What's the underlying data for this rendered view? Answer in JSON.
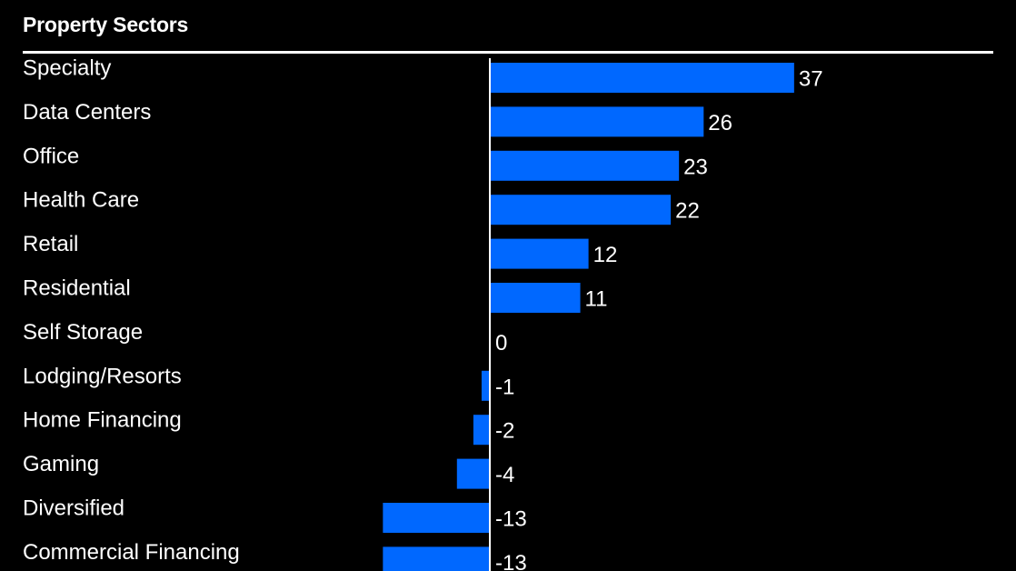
{
  "header": {
    "title": "Property Sectors"
  },
  "colors": {
    "background": "#000000",
    "bar": "#0068ff",
    "text": "#ffffff",
    "axis": "#ffffff"
  },
  "chart_data": {
    "type": "bar",
    "orientation": "horizontal",
    "title": "Property Sectors",
    "categories": [
      "Specialty",
      "Data Centers",
      "Office",
      "Health Care",
      "Retail",
      "Residential",
      "Self Storage",
      "Lodging/Resorts",
      "Home Financing",
      "Gaming",
      "Diversified",
      "Commercial Financing"
    ],
    "values": [
      37,
      26,
      23,
      22,
      12,
      11,
      0,
      -1,
      -2,
      -4,
      -13,
      -13
    ],
    "value_labels": [
      "37",
      "26",
      "23",
      "22",
      "12",
      "11",
      "0",
      "-1",
      "-2",
      "-4",
      "-13",
      "-13"
    ],
    "xlim": [
      -15,
      37
    ],
    "grid": false,
    "legend": "none"
  }
}
